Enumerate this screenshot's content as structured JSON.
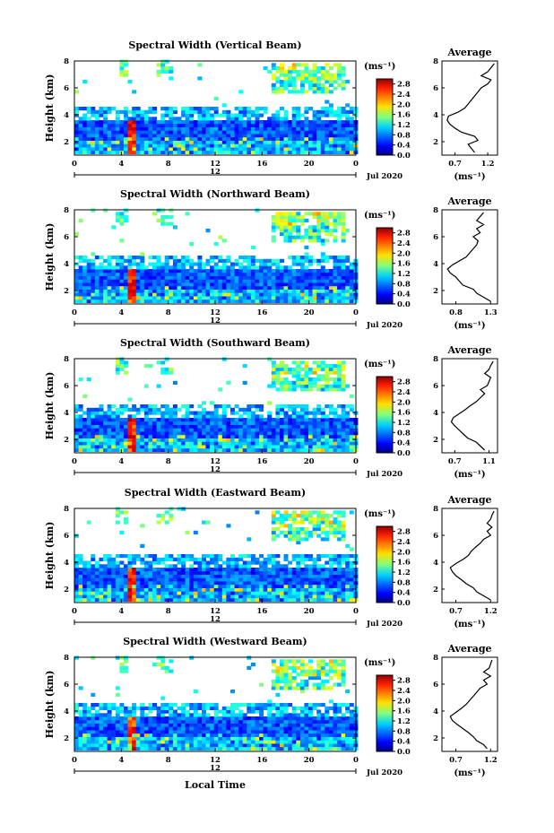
{
  "chart_data": {
    "type": "heatmap",
    "date_label": "Jul 2020",
    "xlabel": "Local Time",
    "ylabel": "Height (km)",
    "x_ticks": [
      "0",
      "4",
      "8",
      "12",
      "16",
      "20",
      "0"
    ],
    "midnight_marker": "12",
    "xlim": [
      0,
      24
    ],
    "ylim": [
      1,
      8
    ],
    "y_ticks": [
      "2",
      "4",
      "6",
      "8"
    ],
    "colorbar": {
      "unit": "(ms⁻¹)",
      "ticks": [
        "0.0",
        "0.4",
        "0.8",
        "1.2",
        "1.6",
        "2.0",
        "2.4",
        "2.8"
      ],
      "range": [
        0.0,
        3.0
      ]
    },
    "profile": {
      "title": "Average",
      "xlabel": "(ms⁻¹)",
      "ylim": [
        1,
        8
      ],
      "y_ticks": [
        "2",
        "4",
        "6",
        "8"
      ]
    },
    "panels": [
      {
        "title": "Spectral Width (Vertical Beam)",
        "profile_ticks": [
          "0.7",
          "1.2"
        ],
        "profile_xlim": [
          0.5,
          1.35
        ],
        "profile": [
          [
            1.2,
            1.0
          ],
          [
            1.5,
            0.95
          ],
          [
            1.8,
            0.9
          ],
          [
            2.1,
            1.05
          ],
          [
            2.4,
            1.0
          ],
          [
            2.7,
            0.8
          ],
          [
            3.0,
            0.7
          ],
          [
            3.3,
            0.62
          ],
          [
            3.6,
            0.58
          ],
          [
            3.9,
            0.6
          ],
          [
            4.2,
            0.75
          ],
          [
            4.5,
            0.85
          ],
          [
            4.8,
            0.9
          ],
          [
            5.1,
            0.95
          ],
          [
            5.4,
            1.0
          ],
          [
            5.7,
            1.05
          ],
          [
            6.0,
            1.1
          ],
          [
            6.3,
            1.2
          ],
          [
            6.6,
            1.25
          ],
          [
            6.9,
            1.1
          ],
          [
            7.2,
            1.2
          ],
          [
            7.5,
            1.25
          ],
          [
            7.8,
            1.3
          ]
        ]
      },
      {
        "title": "Spectral Width (Northward Beam)",
        "profile_ticks": [
          "0.8",
          "1.3"
        ],
        "profile_xlim": [
          0.6,
          1.4
        ],
        "profile": [
          [
            1.2,
            1.3
          ],
          [
            1.5,
            1.2
          ],
          [
            1.8,
            1.1
          ],
          [
            2.1,
            1.05
          ],
          [
            2.4,
            0.9
          ],
          [
            2.7,
            0.85
          ],
          [
            3.0,
            0.8
          ],
          [
            3.3,
            0.72
          ],
          [
            3.6,
            0.68
          ],
          [
            3.9,
            0.75
          ],
          [
            4.2,
            0.85
          ],
          [
            4.5,
            0.95
          ],
          [
            4.8,
            1.0
          ],
          [
            5.1,
            1.05
          ],
          [
            5.4,
            1.1
          ],
          [
            5.7,
            1.12
          ],
          [
            6.0,
            1.05
          ],
          [
            6.3,
            1.15
          ],
          [
            6.6,
            1.1
          ],
          [
            6.9,
            1.2
          ],
          [
            7.2,
            1.1
          ],
          [
            7.5,
            1.15
          ],
          [
            7.8,
            1.2
          ]
        ]
      },
      {
        "title": "Spectral Width (Southward Beam)",
        "profile_ticks": [
          "0.7",
          "1.1"
        ],
        "profile_xlim": [
          0.55,
          1.2
        ],
        "profile": [
          [
            1.2,
            1.05
          ],
          [
            1.5,
            1.0
          ],
          [
            1.8,
            0.95
          ],
          [
            2.1,
            0.85
          ],
          [
            2.4,
            0.8
          ],
          [
            2.7,
            0.75
          ],
          [
            3.0,
            0.7
          ],
          [
            3.3,
            0.66
          ],
          [
            3.6,
            0.68
          ],
          [
            3.9,
            0.75
          ],
          [
            4.2,
            0.82
          ],
          [
            4.5,
            0.88
          ],
          [
            4.8,
            0.95
          ],
          [
            5.1,
            1.0
          ],
          [
            5.4,
            1.05
          ],
          [
            5.7,
            1.0
          ],
          [
            6.0,
            1.08
          ],
          [
            6.3,
            1.1
          ],
          [
            6.6,
            1.12
          ],
          [
            6.9,
            1.05
          ],
          [
            7.2,
            1.1
          ],
          [
            7.5,
            1.12
          ],
          [
            7.8,
            1.15
          ]
        ]
      },
      {
        "title": "Spectral Width (Eastward Beam)",
        "profile_ticks": [
          "0.7",
          "1.2"
        ],
        "profile_xlim": [
          0.5,
          1.3
        ],
        "profile": [
          [
            1.2,
            1.2
          ],
          [
            1.5,
            1.1
          ],
          [
            1.8,
            1.0
          ],
          [
            2.1,
            0.95
          ],
          [
            2.4,
            0.85
          ],
          [
            2.7,
            0.78
          ],
          [
            3.0,
            0.7
          ],
          [
            3.3,
            0.65
          ],
          [
            3.6,
            0.62
          ],
          [
            3.9,
            0.7
          ],
          [
            4.2,
            0.8
          ],
          [
            4.5,
            0.88
          ],
          [
            4.8,
            0.92
          ],
          [
            5.1,
            0.98
          ],
          [
            5.4,
            1.05
          ],
          [
            5.7,
            1.1
          ],
          [
            6.0,
            1.2
          ],
          [
            6.3,
            1.15
          ],
          [
            6.6,
            1.22
          ],
          [
            6.9,
            1.15
          ],
          [
            7.2,
            1.2
          ],
          [
            7.5,
            1.22
          ],
          [
            7.8,
            1.25
          ]
        ]
      },
      {
        "title": "Spectral Width (Westward Beam)",
        "profile_ticks": [
          "0.7",
          "1.2"
        ],
        "profile_xlim": [
          0.5,
          1.3
        ],
        "profile": [
          [
            1.2,
            1.15
          ],
          [
            1.5,
            1.1
          ],
          [
            1.8,
            1.0
          ],
          [
            2.1,
            0.95
          ],
          [
            2.4,
            0.88
          ],
          [
            2.7,
            0.8
          ],
          [
            3.0,
            0.72
          ],
          [
            3.3,
            0.65
          ],
          [
            3.6,
            0.62
          ],
          [
            3.9,
            0.7
          ],
          [
            4.2,
            0.78
          ],
          [
            4.5,
            0.85
          ],
          [
            4.8,
            0.9
          ],
          [
            5.1,
            0.95
          ],
          [
            5.4,
            1.0
          ],
          [
            5.7,
            1.05
          ],
          [
            6.0,
            1.15
          ],
          [
            6.3,
            1.1
          ],
          [
            6.6,
            1.2
          ],
          [
            6.9,
            1.1
          ],
          [
            7.2,
            1.18
          ],
          [
            7.5,
            1.2
          ],
          [
            7.8,
            1.22
          ]
        ]
      }
    ]
  }
}
